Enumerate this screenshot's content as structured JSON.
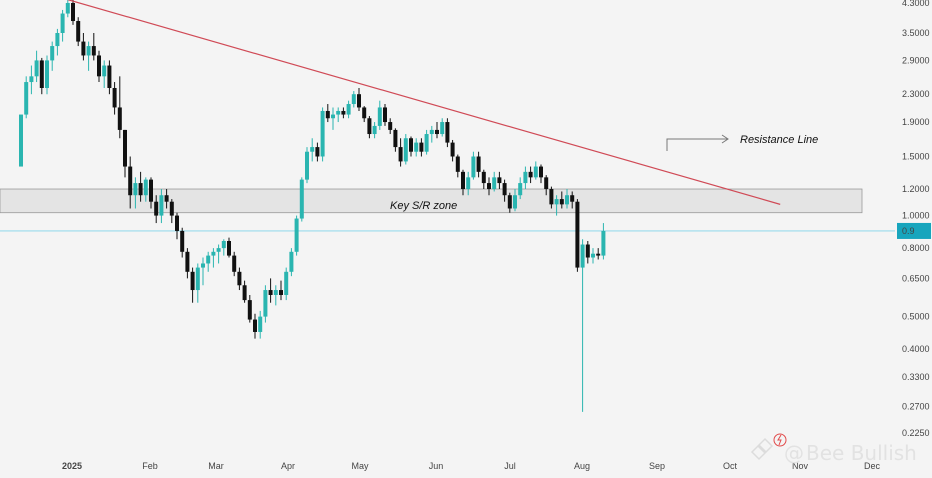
{
  "chart_data": {
    "type": "candlestick",
    "price_scale": "log",
    "y_ticks": [
      "0.2250",
      "0.2700",
      "0.3300",
      "0.4000",
      "0.5000",
      "0.6500",
      "0.8000",
      "1.0000",
      "1.2000",
      "1.5000",
      "1.9000",
      "2.3000",
      "2.9000",
      "3.5000",
      "4.3000"
    ],
    "x_labels": [
      "2025",
      "Feb",
      "Mar",
      "Apr",
      "May",
      "Jun",
      "Jul",
      "Aug",
      "Sep",
      "Oct",
      "Nov",
      "Dec"
    ],
    "current_price_label": "0.9",
    "candles": [
      [
        1.4,
        2.0,
        1.4,
        2.0
      ],
      [
        2.0,
        2.6,
        1.95,
        2.5
      ],
      [
        2.5,
        2.8,
        2.3,
        2.6
      ],
      [
        2.6,
        3.1,
        2.5,
        2.9
      ],
      [
        2.9,
        2.95,
        2.3,
        2.4
      ],
      [
        2.4,
        3.0,
        2.3,
        2.9
      ],
      [
        2.9,
        3.3,
        2.7,
        3.2
      ],
      [
        3.2,
        3.6,
        3.0,
        3.5
      ],
      [
        3.5,
        4.1,
        3.3,
        4.0
      ],
      [
        4.0,
        4.6,
        3.9,
        4.3
      ],
      [
        4.3,
        4.5,
        3.7,
        3.8
      ],
      [
        3.8,
        3.9,
        3.2,
        3.3
      ],
      [
        3.3,
        3.5,
        2.9,
        3.0
      ],
      [
        3.0,
        3.3,
        2.7,
        3.2
      ],
      [
        3.2,
        3.5,
        2.9,
        3.0
      ],
      [
        3.0,
        3.1,
        2.5,
        2.6
      ],
      [
        2.6,
        2.9,
        2.4,
        2.8
      ],
      [
        2.8,
        2.9,
        2.3,
        2.4
      ],
      [
        2.4,
        2.5,
        2.0,
        2.1
      ],
      [
        2.1,
        2.6,
        1.7,
        1.8
      ],
      [
        1.8,
        1.8,
        1.3,
        1.4
      ],
      [
        1.4,
        1.5,
        1.05,
        1.15
      ],
      [
        1.15,
        1.3,
        1.05,
        1.25
      ],
      [
        1.25,
        1.35,
        1.1,
        1.15
      ],
      [
        1.15,
        1.3,
        1.1,
        1.28
      ],
      [
        1.28,
        1.3,
        1.05,
        1.1
      ],
      [
        1.1,
        1.15,
        0.95,
        1.0
      ],
      [
        1.0,
        1.2,
        0.95,
        1.15
      ],
      [
        1.15,
        1.2,
        1.05,
        1.1
      ],
      [
        1.1,
        1.12,
        0.95,
        1.0
      ],
      [
        1.0,
        1.02,
        0.85,
        0.9
      ],
      [
        0.9,
        0.92,
        0.75,
        0.78
      ],
      [
        0.78,
        0.8,
        0.65,
        0.68
      ],
      [
        0.68,
        0.7,
        0.55,
        0.6
      ],
      [
        0.6,
        0.72,
        0.55,
        0.7
      ],
      [
        0.7,
        0.75,
        0.62,
        0.72
      ],
      [
        0.72,
        0.78,
        0.68,
        0.76
      ],
      [
        0.76,
        0.8,
        0.7,
        0.78
      ],
      [
        0.78,
        0.82,
        0.72,
        0.8
      ],
      [
        0.8,
        0.85,
        0.76,
        0.84
      ],
      [
        0.84,
        0.86,
        0.75,
        0.76
      ],
      [
        0.76,
        0.78,
        0.66,
        0.68
      ],
      [
        0.68,
        0.7,
        0.6,
        0.62
      ],
      [
        0.62,
        0.64,
        0.55,
        0.56
      ],
      [
        0.56,
        0.58,
        0.48,
        0.49
      ],
      [
        0.49,
        0.51,
        0.43,
        0.45
      ],
      [
        0.45,
        0.52,
        0.43,
        0.5
      ],
      [
        0.5,
        0.62,
        0.48,
        0.6
      ],
      [
        0.6,
        0.65,
        0.55,
        0.58
      ],
      [
        0.58,
        0.62,
        0.54,
        0.6
      ],
      [
        0.6,
        0.64,
        0.56,
        0.58
      ],
      [
        0.58,
        0.7,
        0.56,
        0.68
      ],
      [
        0.68,
        0.8,
        0.66,
        0.78
      ],
      [
        0.78,
        1.0,
        0.76,
        0.98
      ],
      [
        0.98,
        1.3,
        0.96,
        1.28
      ],
      [
        1.28,
        1.6,
        1.25,
        1.55
      ],
      [
        1.55,
        1.7,
        1.45,
        1.6
      ],
      [
        1.6,
        1.65,
        1.45,
        1.5
      ],
      [
        1.5,
        2.1,
        1.45,
        2.05
      ],
      [
        2.05,
        2.15,
        1.9,
        1.95
      ],
      [
        1.95,
        2.1,
        1.8,
        2.0
      ],
      [
        2.0,
        2.1,
        1.9,
        2.05
      ],
      [
        2.05,
        2.1,
        1.95,
        2.0
      ],
      [
        2.0,
        2.2,
        1.95,
        2.15
      ],
      [
        2.15,
        2.35,
        2.1,
        2.3
      ],
      [
        2.3,
        2.4,
        2.05,
        2.1
      ],
      [
        2.1,
        2.12,
        1.9,
        1.95
      ],
      [
        1.95,
        1.98,
        1.7,
        1.75
      ],
      [
        1.75,
        1.9,
        1.7,
        1.85
      ],
      [
        1.85,
        2.2,
        1.8,
        2.1
      ],
      [
        2.1,
        2.15,
        1.85,
        1.9
      ],
      [
        1.9,
        1.95,
        1.75,
        1.8
      ],
      [
        1.8,
        1.82,
        1.55,
        1.6
      ],
      [
        1.6,
        1.7,
        1.4,
        1.45
      ],
      [
        1.45,
        1.75,
        1.42,
        1.7
      ],
      [
        1.7,
        1.72,
        1.5,
        1.55
      ],
      [
        1.55,
        1.7,
        1.5,
        1.65
      ],
      [
        1.65,
        1.7,
        1.5,
        1.55
      ],
      [
        1.55,
        1.8,
        1.52,
        1.75
      ],
      [
        1.75,
        1.85,
        1.65,
        1.8
      ],
      [
        1.8,
        1.9,
        1.7,
        1.75
      ],
      [
        1.75,
        1.95,
        1.72,
        1.9
      ],
      [
        1.9,
        1.95,
        1.6,
        1.65
      ],
      [
        1.65,
        1.68,
        1.45,
        1.5
      ],
      [
        1.5,
        1.52,
        1.3,
        1.35
      ],
      [
        1.35,
        1.37,
        1.15,
        1.2
      ],
      [
        1.2,
        1.35,
        1.15,
        1.3
      ],
      [
        1.3,
        1.55,
        1.28,
        1.5
      ],
      [
        1.5,
        1.55,
        1.3,
        1.35
      ],
      [
        1.35,
        1.37,
        1.2,
        1.25
      ],
      [
        1.25,
        1.3,
        1.15,
        1.2
      ],
      [
        1.2,
        1.35,
        1.18,
        1.3
      ],
      [
        1.3,
        1.35,
        1.2,
        1.25
      ],
      [
        1.25,
        1.28,
        1.1,
        1.15
      ],
      [
        1.15,
        1.17,
        1.02,
        1.05
      ],
      [
        1.05,
        1.2,
        1.03,
        1.15
      ],
      [
        1.15,
        1.3,
        1.12,
        1.25
      ],
      [
        1.25,
        1.4,
        1.2,
        1.35
      ],
      [
        1.35,
        1.4,
        1.25,
        1.3
      ],
      [
        1.3,
        1.45,
        1.28,
        1.4
      ],
      [
        1.4,
        1.42,
        1.25,
        1.3
      ],
      [
        1.3,
        1.32,
        1.15,
        1.2
      ],
      [
        1.2,
        1.22,
        1.05,
        1.08
      ],
      [
        1.08,
        1.15,
        1.0,
        1.12
      ],
      [
        1.12,
        1.18,
        1.05,
        1.08
      ],
      [
        1.08,
        1.2,
        1.05,
        1.15
      ],
      [
        1.15,
        1.18,
        1.05,
        1.1
      ],
      [
        1.1,
        1.12,
        0.68,
        0.7
      ],
      [
        0.7,
        0.85,
        0.26,
        0.82
      ],
      [
        0.82,
        0.84,
        0.72,
        0.75
      ],
      [
        0.75,
        0.8,
        0.72,
        0.77
      ],
      [
        0.77,
        0.8,
        0.74,
        0.76
      ],
      [
        0.76,
        0.95,
        0.74,
        0.9
      ]
    ],
    "trendline": {
      "from_candle": 9,
      "from_price": 4.4,
      "to_candle": 146,
      "to_price": 1.08
    },
    "zone": {
      "low": 1.02,
      "high": 1.2
    },
    "colors": {
      "up": "#2ab5b0",
      "down": "#111111",
      "trendline": "#d04a56",
      "zone_fill": "#e4e4e4",
      "zone_border": "#999999",
      "price_line": "#7fd3ea",
      "price_tag": "#17a5bd",
      "background": "#f4f4f4"
    },
    "annotations": {
      "resistance": "Resistance Line",
      "zone_label": "Key S/R zone"
    }
  },
  "watermark": {
    "text": "Bee Bullish",
    "at": "@"
  }
}
